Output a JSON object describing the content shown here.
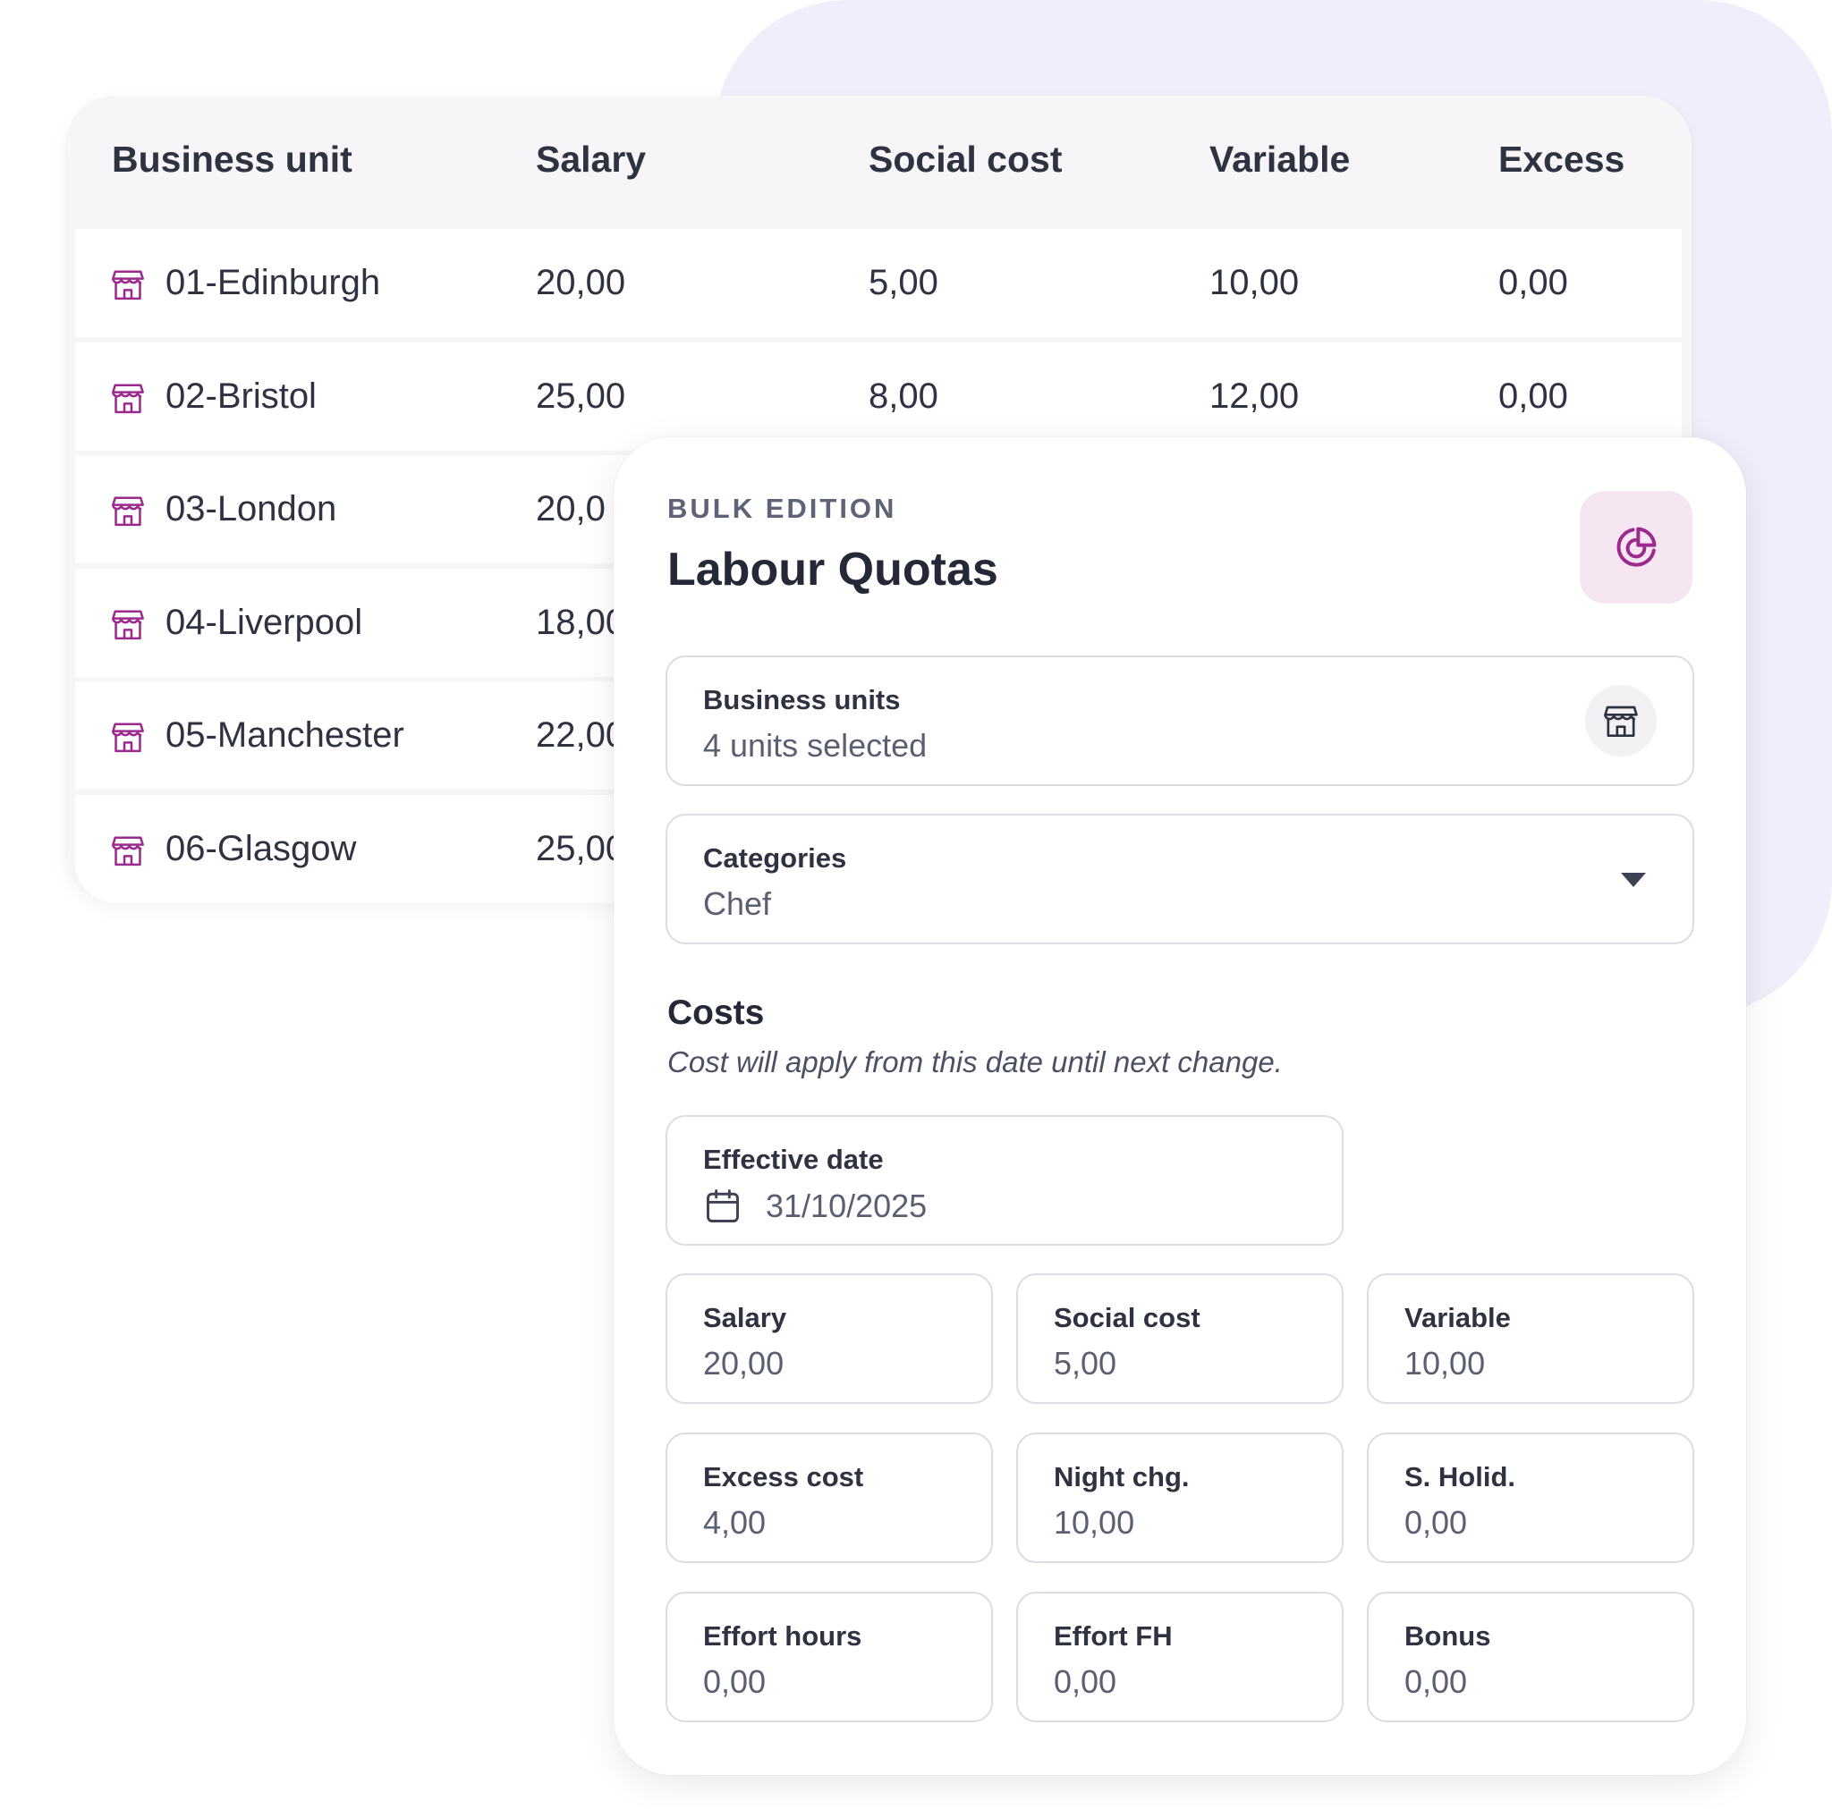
{
  "table": {
    "headers": [
      "Business unit",
      "Salary",
      "Social cost",
      "Variable",
      "Excess"
    ],
    "rows": [
      {
        "unit": "01-Edinburgh",
        "salary": "20,00",
        "social": "5,00",
        "variable": "10,00",
        "excess": "0,00"
      },
      {
        "unit": "02-Bristol",
        "salary": "25,00",
        "social": "8,00",
        "variable": "12,00",
        "excess": "0,00"
      },
      {
        "unit": "03-London",
        "salary": "20,0",
        "social": "",
        "variable": "",
        "excess": ""
      },
      {
        "unit": "04-Liverpool",
        "salary": "18,00",
        "social": "",
        "variable": "",
        "excess": ""
      },
      {
        "unit": "05-Manchester",
        "salary": "22,00",
        "social": "",
        "variable": "",
        "excess": ""
      },
      {
        "unit": "06-Glasgow",
        "salary": "25,00",
        "social": "",
        "variable": "",
        "excess": ""
      }
    ],
    "row_icon": "store-icon"
  },
  "panel": {
    "eyebrow": "BULK EDITION",
    "title": "Labour Quotas",
    "action_icon": "pie-chart-icon",
    "business_units": {
      "label": "Business units",
      "value": "4 units selected",
      "icon": "store-icon"
    },
    "categories": {
      "label": "Categories",
      "value": "Chef",
      "icon": "chevron-down-icon"
    },
    "costs": {
      "title": "Costs",
      "subtitle": "Cost will apply from this date until next change.",
      "effective_date": {
        "label": "Effective date",
        "value": "31/10/2025",
        "icon": "calendar-icon"
      },
      "fields": [
        {
          "label": "Salary",
          "value": "20,00"
        },
        {
          "label": "Social cost",
          "value": "5,00"
        },
        {
          "label": "Variable",
          "value": "10,00"
        },
        {
          "label": "Excess cost",
          "value": "4,00"
        },
        {
          "label": "Night chg.",
          "value": "10,00"
        },
        {
          "label": "S. Holid.",
          "value": "0,00"
        },
        {
          "label": "Effort hours",
          "value": "0,00"
        },
        {
          "label": "Effort FH",
          "value": "0,00"
        },
        {
          "label": "Bonus",
          "value": "0,00"
        }
      ]
    }
  },
  "colors": {
    "accent": "#9c2a8e",
    "accent_bg": "#f6e6f2",
    "background_blob": "#f1eefb",
    "text": "#2f3241"
  }
}
